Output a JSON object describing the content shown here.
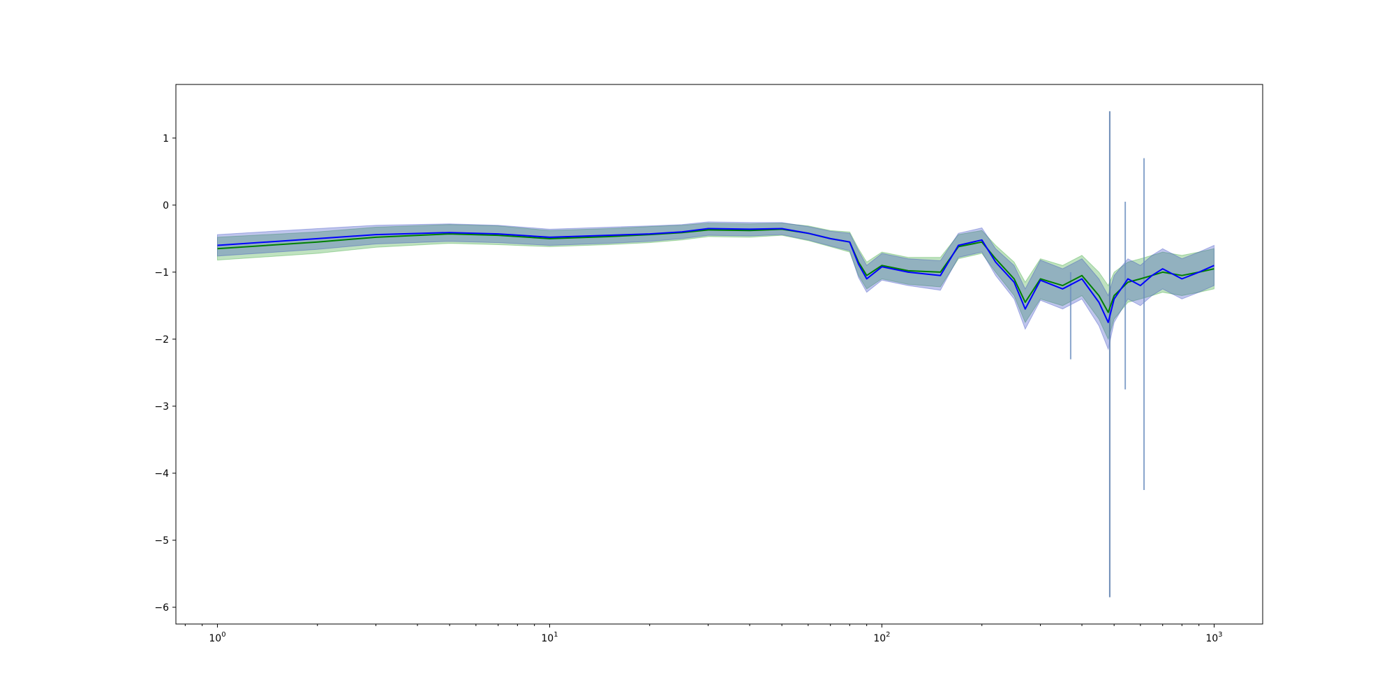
{
  "chart_data": {
    "type": "line",
    "x_scale": "log",
    "xlim": [
      0.75,
      1400
    ],
    "ylim": [
      -6.25,
      1.8
    ],
    "xticks": [
      {
        "value": 1,
        "base": "10",
        "exp": "0"
      },
      {
        "value": 10,
        "base": "10",
        "exp": "1"
      },
      {
        "value": 100,
        "base": "10",
        "exp": "2"
      },
      {
        "value": 1000,
        "base": "10",
        "exp": "3"
      }
    ],
    "yticks": [
      {
        "value": 1,
        "label": "1"
      },
      {
        "value": 0,
        "label": "0"
      },
      {
        "value": -1,
        "label": "−1"
      },
      {
        "value": -2,
        "label": "−2"
      },
      {
        "value": -3,
        "label": "−3"
      },
      {
        "value": -4,
        "label": "−4"
      },
      {
        "value": -5,
        "label": "−5"
      },
      {
        "value": -6,
        "label": "−6"
      }
    ],
    "grid": false,
    "legend": "none",
    "series": [
      {
        "color": "#008000",
        "band_color": "#2ca02c",
        "x": [
          1,
          2,
          3,
          5,
          7,
          10,
          15,
          20,
          25,
          30,
          40,
          50,
          60,
          70,
          80,
          85,
          90,
          100,
          120,
          150,
          170,
          200,
          220,
          250,
          270,
          300,
          350,
          400,
          450,
          480,
          500,
          550,
          600,
          650,
          700,
          800,
          900,
          1000
        ],
        "y": [
          -0.65,
          -0.55,
          -0.48,
          -0.43,
          -0.45,
          -0.5,
          -0.47,
          -0.44,
          -0.41,
          -0.37,
          -0.38,
          -0.36,
          -0.42,
          -0.5,
          -0.55,
          -0.85,
          -1.05,
          -0.9,
          -0.98,
          -1.0,
          -0.62,
          -0.55,
          -0.8,
          -1.1,
          -1.45,
          -1.1,
          -1.2,
          -1.05,
          -1.35,
          -1.6,
          -1.35,
          -1.15,
          -1.1,
          -1.05,
          -1.0,
          -1.05,
          -1.0,
          -0.95
        ],
        "lower": [
          -0.82,
          -0.72,
          -0.63,
          -0.57,
          -0.59,
          -0.62,
          -0.59,
          -0.56,
          -0.52,
          -0.47,
          -0.48,
          -0.45,
          -0.53,
          -0.62,
          -0.7,
          -1.05,
          -1.25,
          -1.1,
          -1.18,
          -1.22,
          -0.8,
          -0.72,
          -1.0,
          -1.35,
          -1.75,
          -1.4,
          -1.5,
          -1.35,
          -1.7,
          -2.0,
          -1.7,
          -1.45,
          -1.4,
          -1.35,
          -1.3,
          -1.35,
          -1.3,
          -1.25
        ],
        "upper": [
          -0.48,
          -0.4,
          -0.33,
          -0.29,
          -0.31,
          -0.38,
          -0.35,
          -0.32,
          -0.3,
          -0.27,
          -0.28,
          -0.27,
          -0.31,
          -0.38,
          -0.4,
          -0.65,
          -0.85,
          -0.7,
          -0.78,
          -0.78,
          -0.44,
          -0.38,
          -0.6,
          -0.85,
          -1.15,
          -0.8,
          -0.9,
          -0.75,
          -1.0,
          -1.2,
          -1.0,
          -0.85,
          -0.8,
          -0.75,
          -0.7,
          -0.75,
          -0.7,
          -0.65
        ]
      },
      {
        "color": "#0000ff",
        "band_color": "#2a3fbf",
        "x": [
          1,
          2,
          3,
          5,
          7,
          10,
          15,
          20,
          25,
          30,
          40,
          50,
          60,
          70,
          80,
          85,
          90,
          100,
          120,
          150,
          170,
          200,
          220,
          250,
          270,
          300,
          350,
          400,
          450,
          480,
          500,
          550,
          600,
          650,
          700,
          800,
          900,
          1000
        ],
        "y": [
          -0.6,
          -0.5,
          -0.44,
          -0.41,
          -0.43,
          -0.48,
          -0.45,
          -0.43,
          -0.4,
          -0.35,
          -0.36,
          -0.35,
          -0.42,
          -0.5,
          -0.55,
          -0.88,
          -1.1,
          -0.92,
          -1.0,
          -1.05,
          -0.6,
          -0.52,
          -0.85,
          -1.15,
          -1.55,
          -1.12,
          -1.25,
          -1.1,
          -1.45,
          -1.75,
          -1.4,
          -1.1,
          -1.2,
          -1.05,
          -0.95,
          -1.1,
          -1.0,
          -0.9
        ],
        "lower": [
          -0.76,
          -0.66,
          -0.58,
          -0.54,
          -0.56,
          -0.6,
          -0.57,
          -0.54,
          -0.5,
          -0.45,
          -0.46,
          -0.44,
          -0.52,
          -0.61,
          -0.68,
          -1.08,
          -1.3,
          -1.12,
          -1.2,
          -1.27,
          -0.78,
          -0.7,
          -1.05,
          -1.4,
          -1.85,
          -1.42,
          -1.55,
          -1.4,
          -1.8,
          -2.15,
          -1.75,
          -1.4,
          -1.5,
          -1.35,
          -1.25,
          -1.4,
          -1.3,
          -1.2
        ],
        "upper": [
          -0.44,
          -0.35,
          -0.3,
          -0.28,
          -0.3,
          -0.36,
          -0.33,
          -0.31,
          -0.29,
          -0.25,
          -0.26,
          -0.26,
          -0.32,
          -0.39,
          -0.42,
          -0.68,
          -0.9,
          -0.72,
          -0.8,
          -0.83,
          -0.42,
          -0.34,
          -0.65,
          -0.9,
          -1.25,
          -0.82,
          -0.95,
          -0.8,
          -1.1,
          -1.35,
          -1.05,
          -0.8,
          -0.9,
          -0.75,
          -0.65,
          -0.8,
          -0.7,
          -0.6
        ]
      }
    ],
    "spikes": [
      {
        "x": 485,
        "y_low": -5.85,
        "y_high": 1.4,
        "color": "#4a6fa5"
      },
      {
        "x": 540,
        "y_low": -2.75,
        "y_high": 0.05,
        "color": "#6b8fbf"
      },
      {
        "x": 615,
        "y_low": -4.25,
        "y_high": 0.7,
        "color": "#6b8fbf"
      },
      {
        "x": 370,
        "y_low": -2.3,
        "y_high": -1.0,
        "color": "#6b8fbf"
      }
    ]
  }
}
